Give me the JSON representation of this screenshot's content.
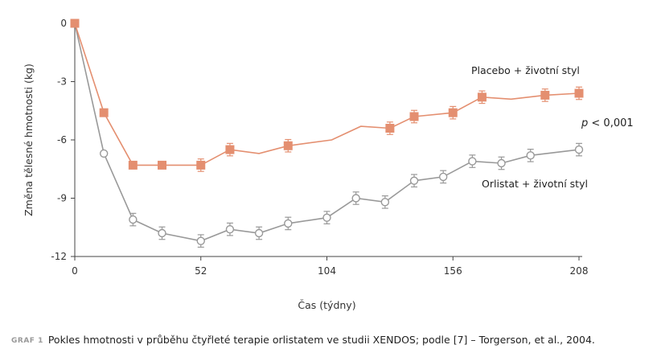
{
  "chart_data": {
    "type": "line",
    "xlabel": "Čas (týdny)",
    "ylabel": "Změna tělesné hmotnosti (kg)",
    "xlim": [
      0,
      208
    ],
    "ylim": [
      -12,
      0
    ],
    "xticks": [
      0,
      52,
      104,
      156,
      208
    ],
    "xtick_labels": [
      "0",
      "52",
      "104",
      "156",
      "208"
    ],
    "yticks": [
      0,
      -3,
      -6,
      -9,
      -12
    ],
    "ytick_labels": [
      "0",
      "-3",
      "-6",
      "-9",
      "-12"
    ],
    "grid": false,
    "annotation": {
      "prefix": "p",
      "text": " < 0,001"
    },
    "series": [
      {
        "name": "Placebo + životní styl",
        "color": "#e48f70",
        "marker": "square",
        "x": [
          0,
          12,
          24,
          36,
          52,
          64,
          76,
          88,
          106,
          118,
          130,
          140,
          156,
          168,
          180,
          194,
          208
        ],
        "y": [
          0,
          -4.6,
          -7.3,
          -7.3,
          -7.3,
          -6.5,
          -6.7,
          -6.3,
          -6.0,
          -5.3,
          -5.4,
          -4.8,
          -4.6,
          -3.8,
          -3.9,
          -3.7,
          -3.6
        ],
        "marker_shown": [
          true,
          true,
          true,
          true,
          true,
          true,
          false,
          true,
          false,
          false,
          true,
          true,
          true,
          true,
          false,
          true,
          true
        ],
        "error_bars": [
          false,
          false,
          false,
          false,
          true,
          true,
          false,
          true,
          false,
          false,
          true,
          true,
          true,
          true,
          false,
          true,
          true
        ]
      },
      {
        "name": "Orlistat + životní styl",
        "color": "#999999",
        "marker": "circle-open",
        "x": [
          0,
          12,
          24,
          36,
          52,
          64,
          76,
          88,
          104,
          116,
          128,
          140,
          152,
          164,
          176,
          188,
          208
        ],
        "y": [
          0,
          -6.7,
          -10.1,
          -10.8,
          -11.2,
          -10.6,
          -10.8,
          -10.3,
          -10.0,
          -9.0,
          -9.2,
          -8.1,
          -7.9,
          -7.1,
          -7.2,
          -6.8,
          -6.5
        ],
        "marker_shown": [
          true,
          true,
          true,
          true,
          true,
          true,
          true,
          true,
          true,
          true,
          true,
          true,
          true,
          true,
          true,
          true,
          true
        ],
        "error_bars": [
          false,
          false,
          true,
          true,
          true,
          true,
          true,
          true,
          true,
          true,
          true,
          true,
          true,
          true,
          true,
          true,
          true
        ]
      }
    ]
  },
  "caption": {
    "tag": "GRAF 1",
    "text": "Pokles hmotnosti v průběhu čtyřleté terapie orlistatem ve studii XENDOS; podle [7] – Torgerson, et al., 2004."
  }
}
